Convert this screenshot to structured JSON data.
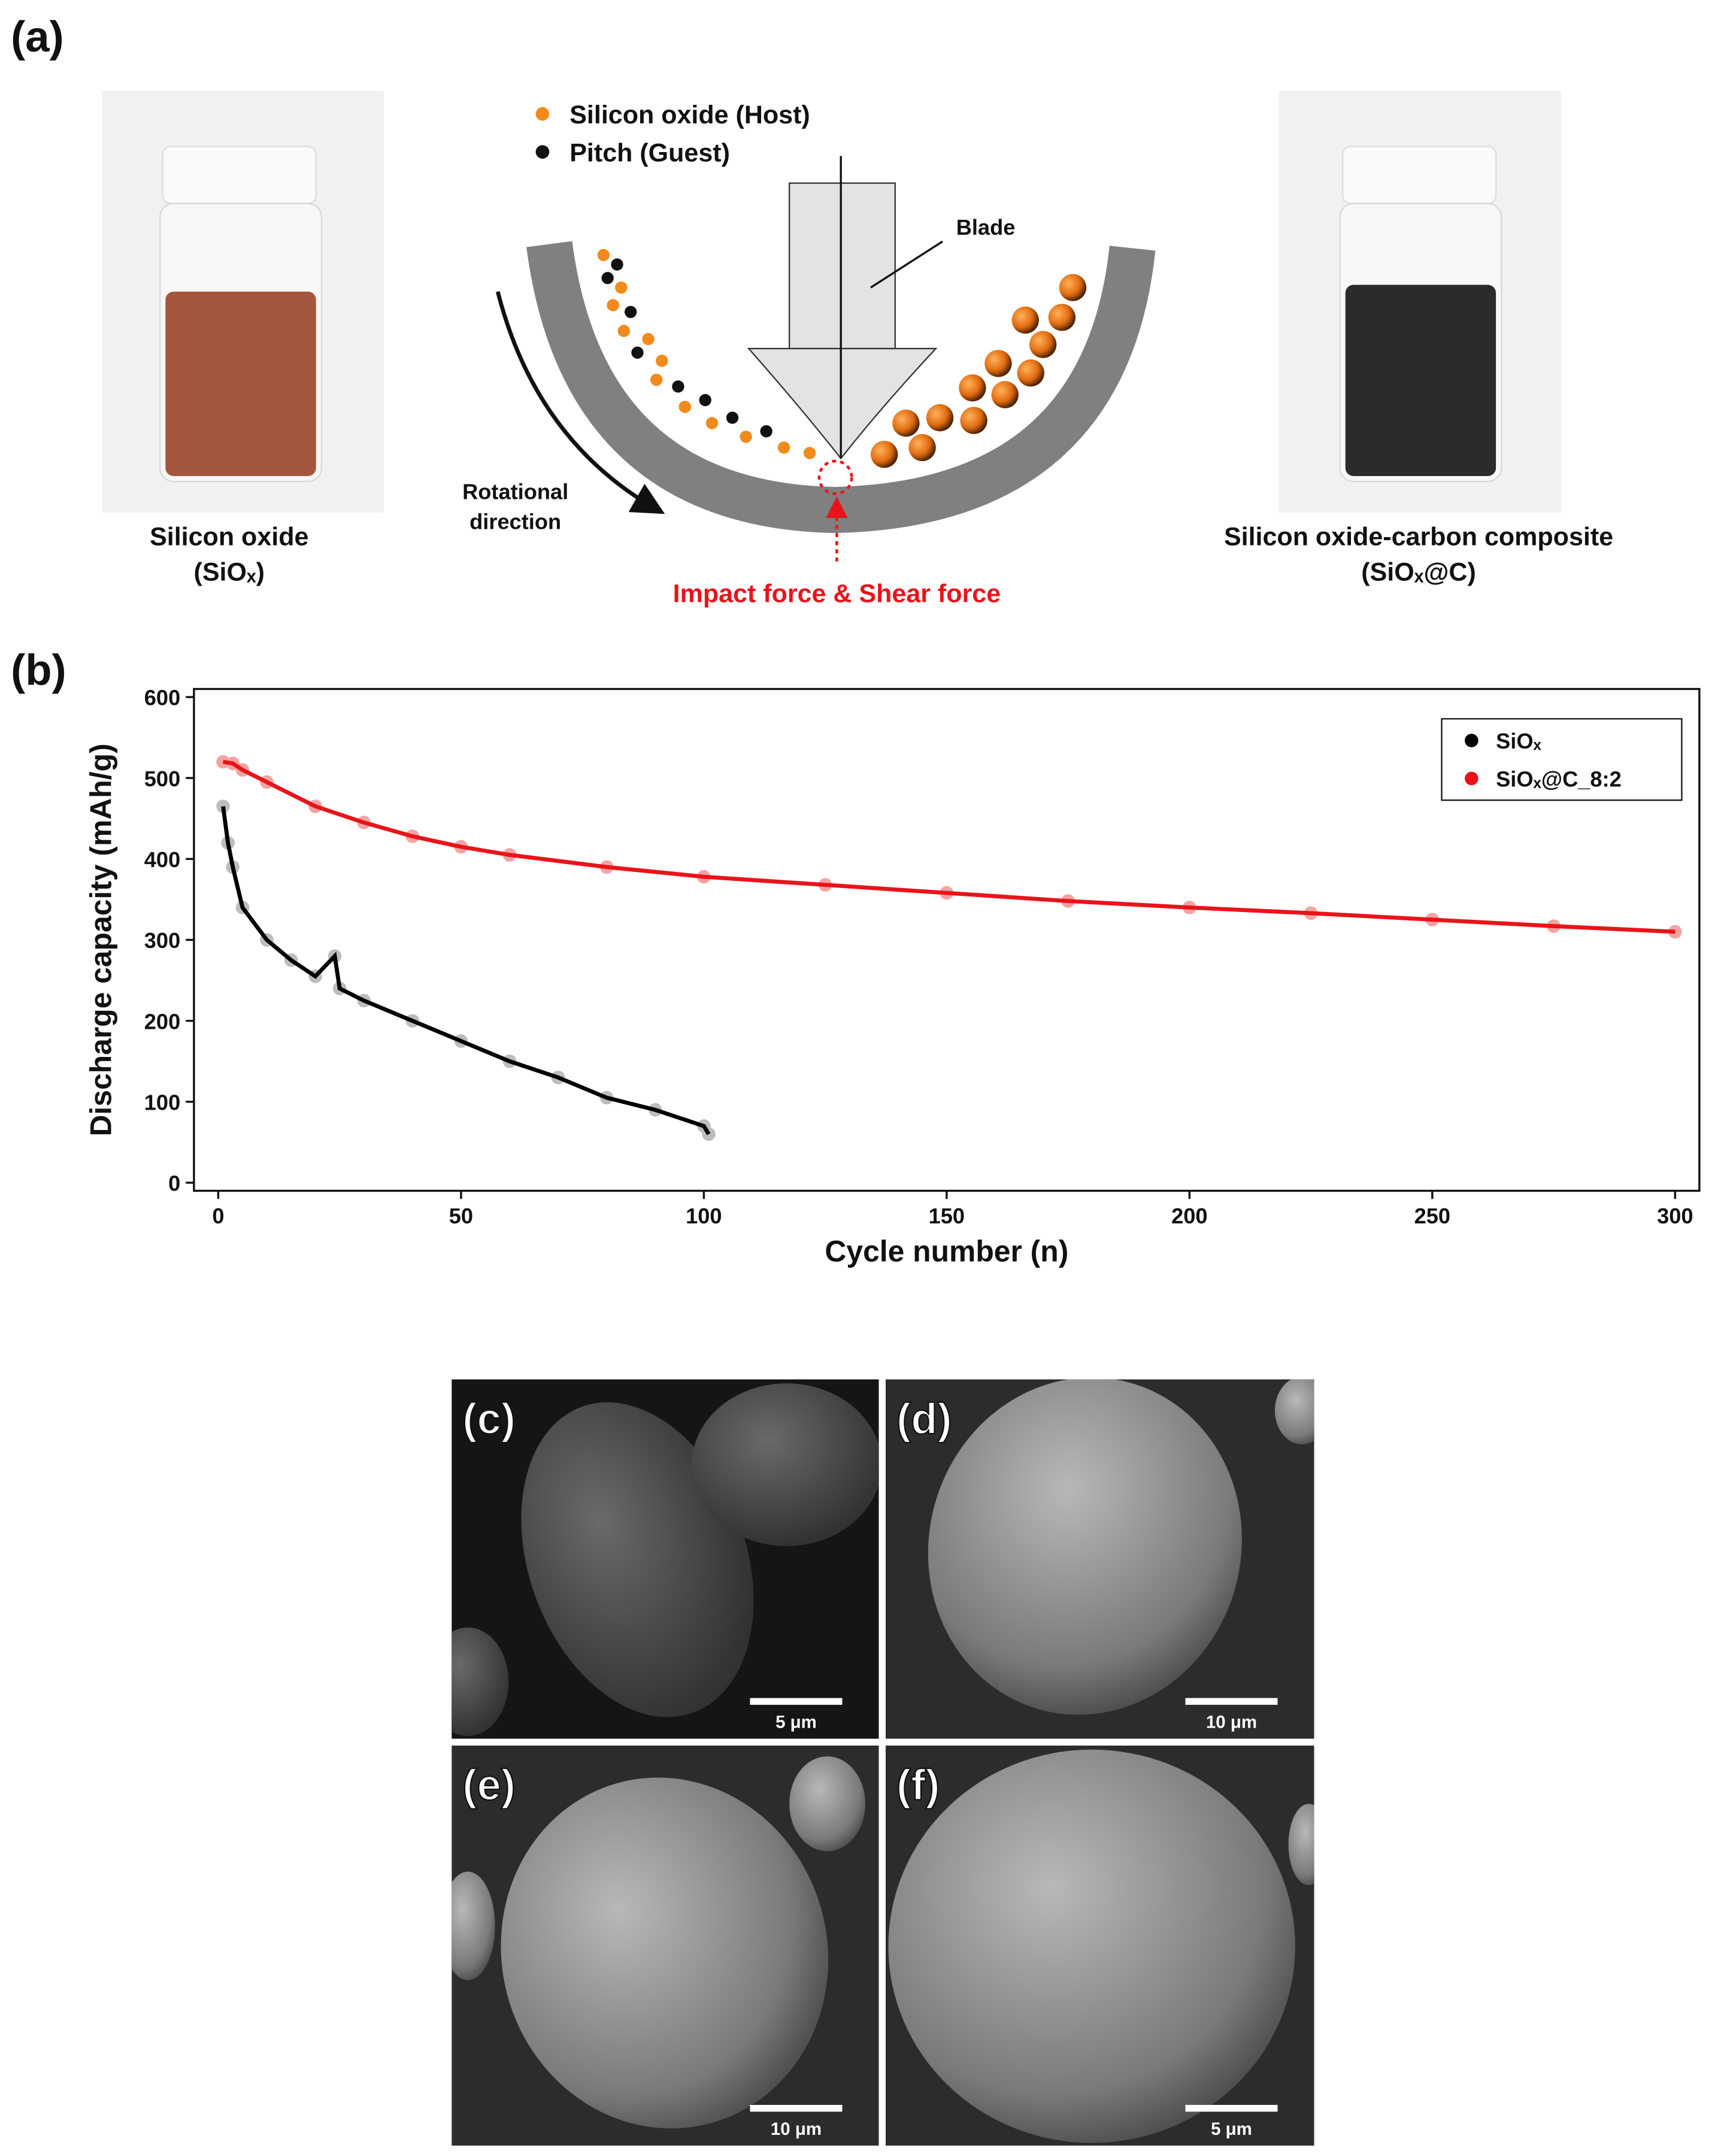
{
  "panel_a": {
    "label": "(a)",
    "left_photo": {
      "caption": [
        "Silicon oxide",
        "(SiOₓ)"
      ]
    },
    "schematic": {
      "legend": [
        "Silicon oxide (Host)",
        "Pitch (Guest)"
      ],
      "blade": "Blade",
      "rotation": [
        "Rotational",
        "direction"
      ],
      "force": "Impact force & Shear force"
    },
    "right_photo": {
      "caption": [
        "Silicon oxide-carbon composite",
        "(SiOₓ@C)"
      ]
    }
  },
  "panel_b_label": "(b)",
  "chart_data": {
    "type": "scatter",
    "xlabel": "Cycle number (n)",
    "ylabel": "Discharge capacity (mAh/g)",
    "xlim": [
      -5,
      305
    ],
    "ylim": [
      -10,
      610
    ],
    "xticks": [
      0,
      50,
      100,
      150,
      200,
      250,
      300
    ],
    "yticks": [
      0,
      100,
      200,
      300,
      400,
      500,
      600
    ],
    "legend": "upper right",
    "series": [
      {
        "name": "SiOₓ",
        "color": "#000000",
        "marker_color": "#bdbdbd",
        "x": [
          1,
          2,
          3,
          5,
          10,
          15,
          20,
          24,
          25,
          30,
          40,
          50,
          60,
          70,
          80,
          90,
          100,
          101
        ],
        "values": [
          465,
          420,
          390,
          340,
          300,
          275,
          255,
          280,
          240,
          225,
          200,
          175,
          150,
          130,
          105,
          90,
          70,
          60
        ]
      },
      {
        "name": "SiOₓ@C_8:2",
        "color": "#e8141a",
        "marker_color": "#f4a3a3",
        "x": [
          1,
          3,
          5,
          10,
          20,
          30,
          40,
          50,
          60,
          80,
          100,
          125,
          150,
          175,
          200,
          225,
          250,
          275,
          300
        ],
        "values": [
          520,
          518,
          510,
          495,
          465,
          445,
          428,
          415,
          405,
          390,
          378,
          368,
          358,
          348,
          340,
          333,
          325,
          317,
          310
        ]
      }
    ]
  },
  "sem_panels": [
    {
      "label": "(c)",
      "scale_bar": "5 μm"
    },
    {
      "label": "(d)",
      "scale_bar": "10 μm"
    },
    {
      "label": "(e)",
      "scale_bar": "10 μm"
    },
    {
      "label": "(f)",
      "scale_bar": "5 μm"
    }
  ]
}
